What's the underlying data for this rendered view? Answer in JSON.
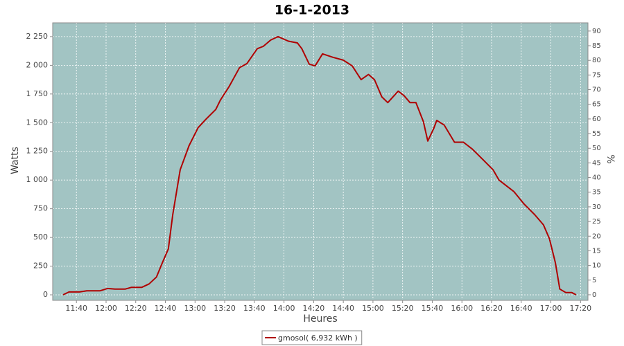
{
  "chart_data": {
    "type": "line",
    "title": "16-1-2013",
    "xlabel": "Heures",
    "ylabel": "Watts",
    "y2label": "%",
    "x": [
      "11:31",
      "11:35",
      "11:42",
      "11:47",
      "11:56",
      "12:01",
      "12:06",
      "12:13",
      "12:17",
      "12:24",
      "12:29",
      "12:34",
      "12:38",
      "12:42",
      "12:45",
      "12:50",
      "12:56",
      "13:02",
      "13:07",
      "13:14",
      "13:17",
      "13:23",
      "13:30",
      "13:35",
      "13:42",
      "13:46",
      "13:51",
      "13:56",
      "14:03",
      "14:09",
      "14:12",
      "14:17",
      "14:21",
      "14:26",
      "14:33",
      "14:40",
      "14:46",
      "14:52",
      "14:57",
      "15:01",
      "15:06",
      "15:10",
      "15:17",
      "15:21",
      "15:25",
      "15:29",
      "15:34",
      "15:37",
      "15:41",
      "15:43",
      "15:48",
      "15:55",
      "16:01",
      "16:07",
      "16:14",
      "16:21",
      "16:25",
      "16:35",
      "16:42",
      "16:49",
      "16:55",
      "16:59",
      "17:03",
      "17:06",
      "17:10",
      "17:14",
      "17:17"
    ],
    "series": [
      {
        "name": "gmosol( 6,932 kWh )",
        "color": "#b00000",
        "values": [
          0,
          25,
          25,
          35,
          35,
          55,
          50,
          50,
          65,
          65,
          95,
          155,
          280,
          400,
          700,
          1090,
          1300,
          1455,
          1525,
          1615,
          1695,
          1815,
          1980,
          2015,
          2145,
          2165,
          2220,
          2250,
          2210,
          2195,
          2145,
          2010,
          1995,
          2100,
          2070,
          2045,
          1995,
          1875,
          1920,
          1875,
          1725,
          1675,
          1775,
          1735,
          1675,
          1675,
          1510,
          1340,
          1450,
          1520,
          1480,
          1330,
          1330,
          1270,
          1180,
          1090,
          1000,
          900,
          790,
          700,
          610,
          490,
          280,
          50,
          20,
          20,
          0
        ]
      }
    ],
    "xlim": [
      "11:24",
      "17:25"
    ],
    "xticks": [
      "11:40",
      "12:00",
      "12:20",
      "12:40",
      "13:00",
      "13:20",
      "13:40",
      "14:00",
      "14:20",
      "14:40",
      "15:00",
      "15:20",
      "15:40",
      "16:00",
      "16:20",
      "16:40",
      "17:00",
      "17:20"
    ],
    "ylim": [
      -48,
      2370
    ],
    "yticks": [
      0,
      250,
      500,
      750,
      {
        "value": 1000,
        "label": "1 000"
      },
      {
        "value": 1250,
        "label": "1 250"
      },
      {
        "value": 1500,
        "label": "1 500"
      },
      {
        "value": 1750,
        "label": "1 750"
      },
      {
        "value": 2000,
        "label": "2 000"
      },
      {
        "value": 2250,
        "label": "2 250"
      }
    ],
    "y2lim": [
      -1.9,
      92.8
    ],
    "y2ticks": [
      0,
      5,
      10,
      15,
      20,
      25,
      30,
      35,
      40,
      45,
      50,
      55,
      60,
      65,
      70,
      75,
      80,
      85,
      90
    ],
    "grid": true,
    "background": "#a2c4c3",
    "legend": "bottom"
  }
}
